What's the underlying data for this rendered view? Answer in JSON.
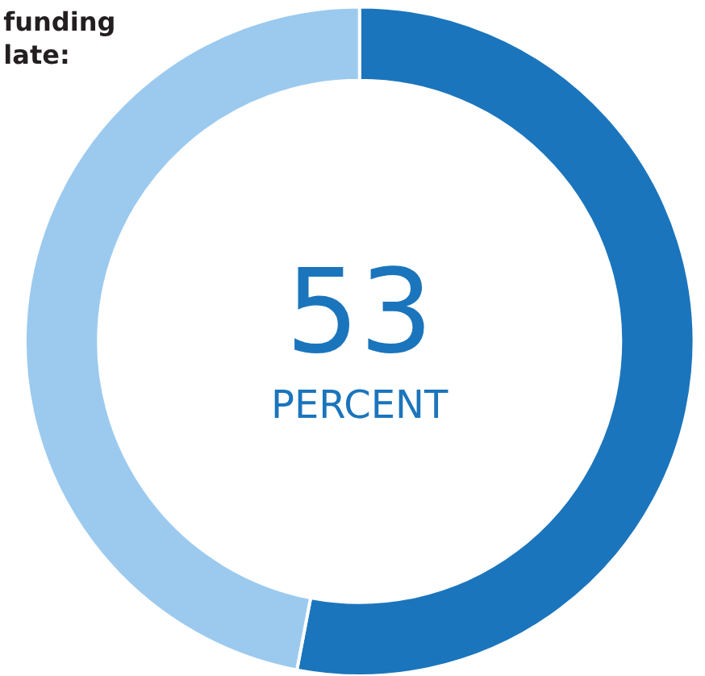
{
  "chart_data": {
    "type": "donut",
    "title": "funding\nlate:",
    "categories": [
      null,
      null
    ],
    "values": [
      53,
      47
    ],
    "colors": [
      "#1b75bc",
      "#9ccaef"
    ],
    "annotations": [
      "53",
      "PERCENT"
    ],
    "legend": false
  }
}
